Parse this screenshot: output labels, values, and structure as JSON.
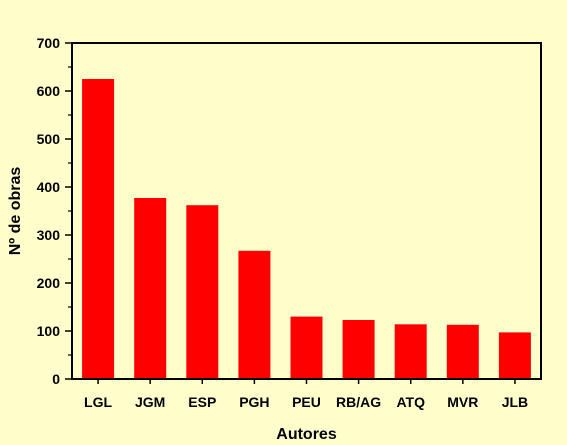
{
  "chart_data": {
    "type": "bar",
    "title": "",
    "xlabel": "Autores",
    "ylabel": "Nº de obras",
    "categories": [
      "LGL",
      "JGM",
      "ESP",
      "PGH",
      "PEU",
      "RB/AG",
      "ATQ",
      "MVR",
      "JLB"
    ],
    "values": [
      625,
      377,
      362,
      267,
      130,
      123,
      114,
      113,
      97
    ],
    "ylim": [
      0,
      700
    ],
    "yticks": [
      0,
      100,
      200,
      300,
      400,
      500,
      600,
      700
    ],
    "grid": false,
    "legend": "none",
    "bar_color": "#ff0000"
  },
  "colors": {
    "background": "#ffffcc",
    "axis": "#000000"
  }
}
